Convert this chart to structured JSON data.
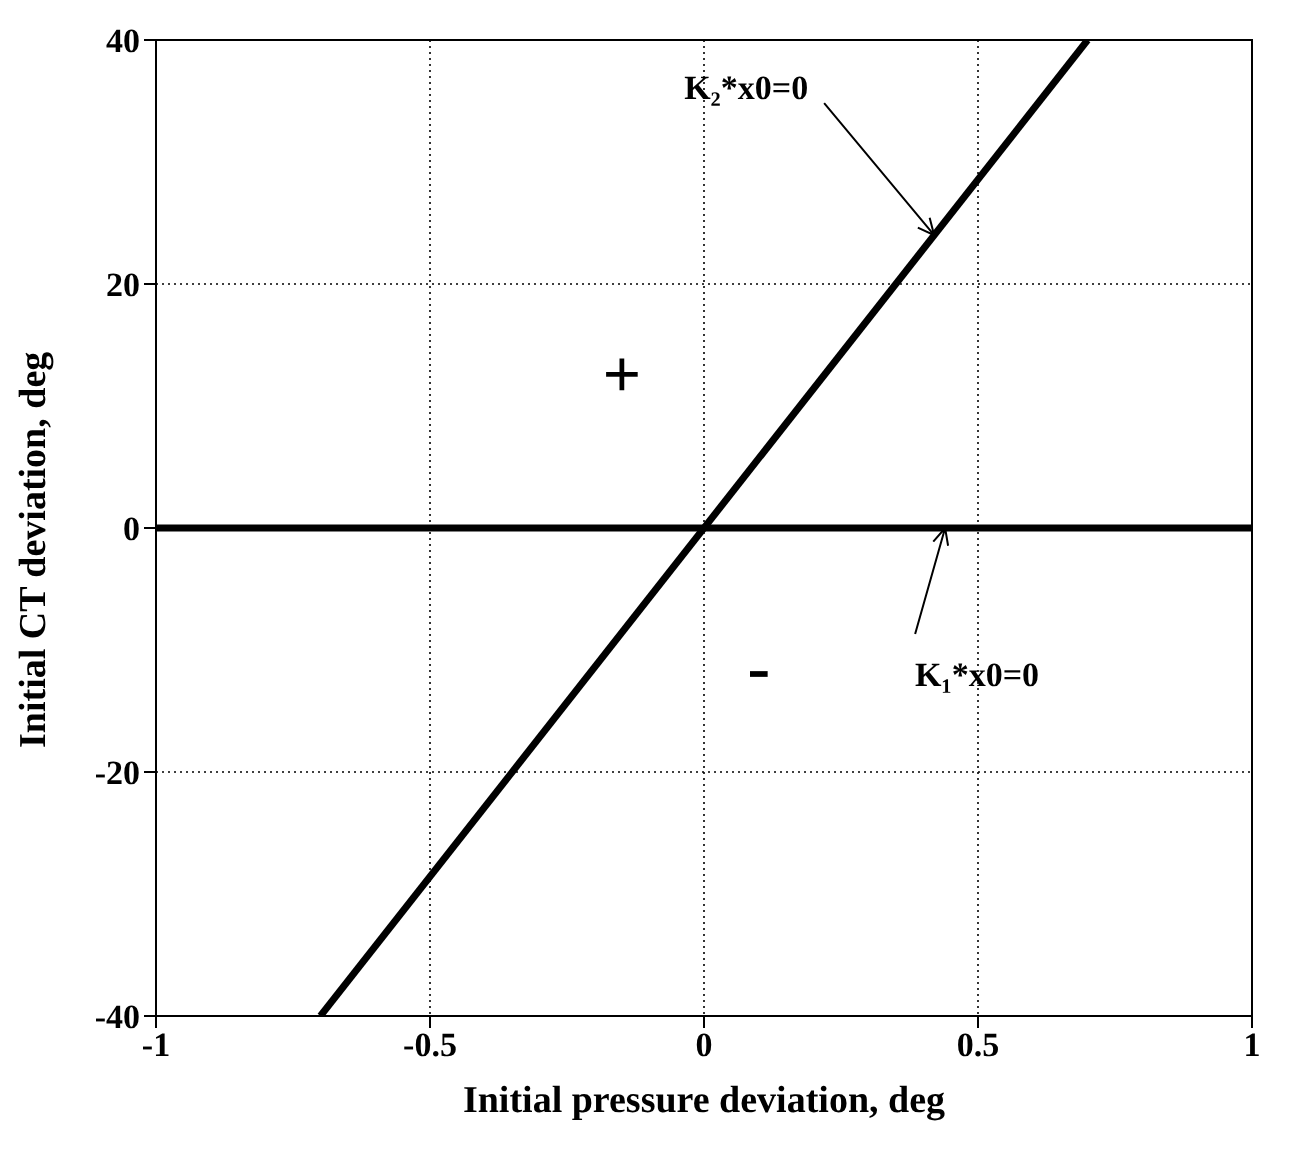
{
  "chart_data": {
    "type": "line",
    "xlabel": "Initial pressure deviation, deg",
    "ylabel": "Initial CT deviation, deg",
    "series": [
      {
        "color": "#000000",
        "x": [
          -0.7,
          0.7
        ],
        "values": [
          -40,
          40
        ]
      }
    ],
    "ref_lines": [
      {
        "axis": "y",
        "value": 0,
        "color": "#000000",
        "line_style": "solid"
      }
    ],
    "xlim": [
      -1,
      1
    ],
    "xticks": [
      -1,
      -0.5,
      0,
      0.5,
      1
    ],
    "ylim": [
      -40,
      40
    ],
    "yticks": [
      -40,
      -20,
      0,
      20,
      40
    ],
    "grid": true,
    "marker": "none",
    "line_style": "solid",
    "annotations": [
      {
        "text": "K₂*x0=0",
        "x": 0.42,
        "y": 24
      },
      {
        "text": "K₁*x0=0",
        "x": 0.44,
        "y": 0
      },
      "+",
      "-"
    ]
  }
}
